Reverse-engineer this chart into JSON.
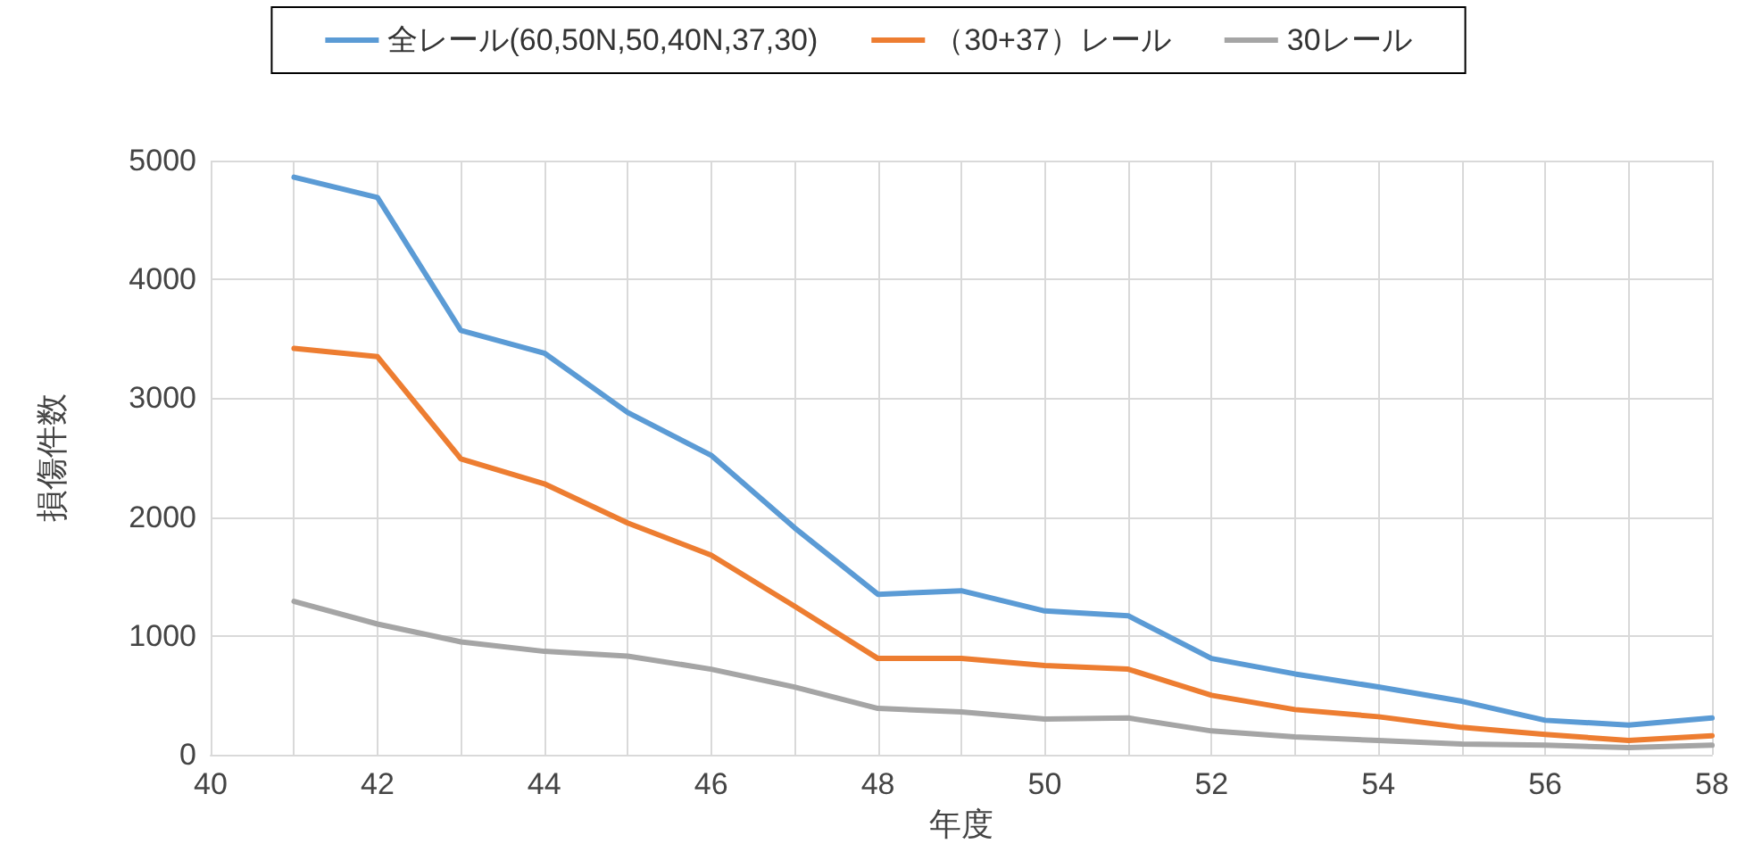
{
  "chart_data": {
    "type": "line",
    "xlabel": "年度",
    "ylabel": "損傷件数",
    "x": [
      41,
      42,
      43,
      44,
      45,
      46,
      47,
      48,
      49,
      50,
      51,
      52,
      53,
      54,
      55,
      56,
      57,
      58
    ],
    "series": [
      {
        "name": "全レール(60,50N,50,40N,37,30)",
        "color": "#5b9bd5",
        "values": [
          4860,
          4690,
          3570,
          3380,
          2880,
          2520,
          1910,
          1350,
          1380,
          1210,
          1170,
          810,
          680,
          570,
          450,
          290,
          250,
          310
        ]
      },
      {
        "name": "（30+37）レール",
        "color": "#ed7d31",
        "values": [
          3420,
          3350,
          2490,
          2280,
          1950,
          1680,
          1250,
          810,
          810,
          750,
          720,
          500,
          380,
          320,
          230,
          170,
          120,
          160
        ]
      },
      {
        "name": "30レール",
        "color": "#a5a5a5",
        "values": [
          1290,
          1100,
          950,
          870,
          830,
          720,
          570,
          390,
          360,
          300,
          310,
          200,
          150,
          120,
          90,
          80,
          60,
          80
        ]
      }
    ],
    "xlim": [
      40,
      58
    ],
    "xticks": [
      40,
      {
        "value": 41,
        "label": null
      },
      42,
      {
        "value": 43,
        "label": null
      },
      44,
      {
        "value": 45,
        "label": null
      },
      46,
      {
        "value": 47,
        "label": null
      },
      48,
      {
        "value": 49,
        "label": null
      },
      50,
      {
        "value": 51,
        "label": null
      },
      52,
      {
        "value": 53,
        "label": null
      },
      54,
      {
        "value": 55,
        "label": null
      },
      56,
      {
        "value": 57,
        "label": null
      },
      58
    ],
    "ylim": [
      0,
      5000
    ],
    "yticks": [
      0,
      1000,
      2000,
      3000,
      4000,
      5000
    ],
    "grid": true,
    "legend": "top",
    "marker": "none",
    "line_style": "solid"
  }
}
